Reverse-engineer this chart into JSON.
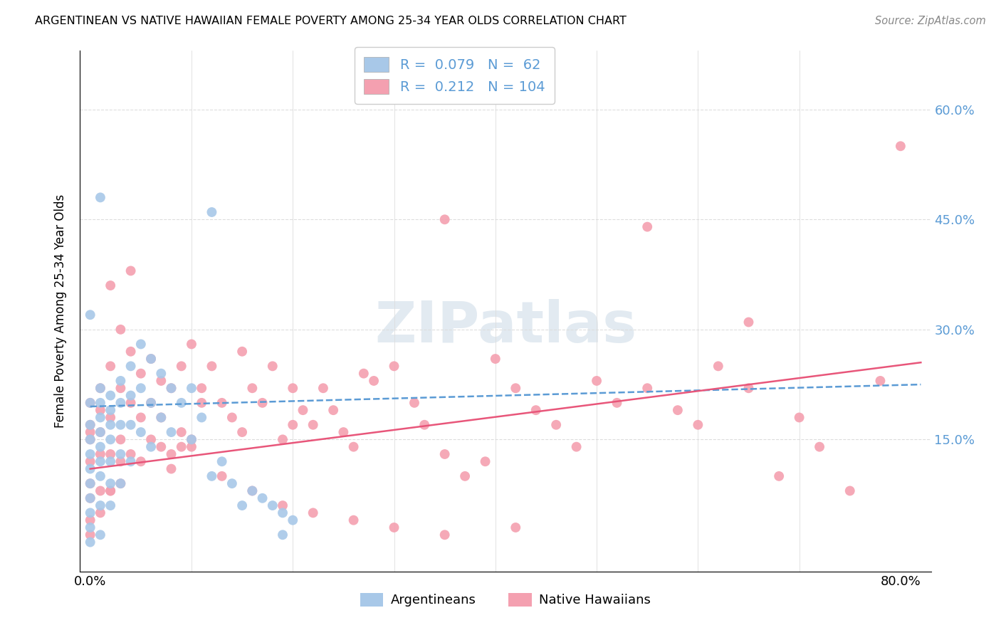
{
  "title": "ARGENTINEAN VS NATIVE HAWAIIAN FEMALE POVERTY AMONG 25-34 YEAR OLDS CORRELATION CHART",
  "source": "Source: ZipAtlas.com",
  "ylabel": "Female Poverty Among 25-34 Year Olds",
  "right_ytick_color": "#5b9bd5",
  "xlim": [
    -0.01,
    0.83
  ],
  "ylim": [
    -0.03,
    0.68
  ],
  "argentinean_color": "#a8c8e8",
  "native_hawaiian_color": "#f4a0b0",
  "argentinean_R": "0.079",
  "argentinean_N": "62",
  "native_hawaiian_R": "0.212",
  "native_hawaiian_N": "104",
  "trend_arg_color": "#5b9bd5",
  "trend_nh_color": "#e8567a",
  "legend_label_1": "Argentineans",
  "legend_label_2": "Native Hawaiians",
  "arg_trend_x0": 0.0,
  "arg_trend_y0": 0.195,
  "arg_trend_x1": 0.82,
  "arg_trend_y1": 0.225,
  "nh_trend_x0": 0.0,
  "nh_trend_y0": 0.11,
  "nh_trend_x1": 0.82,
  "nh_trend_y1": 0.255,
  "argentinean_x": [
    0.0,
    0.0,
    0.0,
    0.0,
    0.0,
    0.0,
    0.0,
    0.0,
    0.0,
    0.0,
    0.01,
    0.01,
    0.01,
    0.01,
    0.01,
    0.01,
    0.01,
    0.01,
    0.01,
    0.02,
    0.02,
    0.02,
    0.02,
    0.02,
    0.02,
    0.02,
    0.03,
    0.03,
    0.03,
    0.03,
    0.03,
    0.04,
    0.04,
    0.04,
    0.04,
    0.05,
    0.05,
    0.05,
    0.06,
    0.06,
    0.06,
    0.07,
    0.07,
    0.08,
    0.08,
    0.09,
    0.1,
    0.1,
    0.11,
    0.12,
    0.13,
    0.14,
    0.15,
    0.16,
    0.17,
    0.18,
    0.19,
    0.2,
    0.01,
    0.12,
    0.19,
    0.0
  ],
  "argentinean_y": [
    0.2,
    0.17,
    0.15,
    0.13,
    0.11,
    0.09,
    0.07,
    0.05,
    0.03,
    0.01,
    0.22,
    0.2,
    0.18,
    0.16,
    0.14,
    0.12,
    0.1,
    0.06,
    0.02,
    0.21,
    0.19,
    0.17,
    0.15,
    0.12,
    0.09,
    0.06,
    0.23,
    0.2,
    0.17,
    0.13,
    0.09,
    0.25,
    0.21,
    0.17,
    0.12,
    0.28,
    0.22,
    0.16,
    0.26,
    0.2,
    0.14,
    0.24,
    0.18,
    0.22,
    0.16,
    0.2,
    0.22,
    0.15,
    0.18,
    0.1,
    0.12,
    0.09,
    0.06,
    0.08,
    0.07,
    0.06,
    0.05,
    0.04,
    0.48,
    0.46,
    0.02,
    0.32
  ],
  "native_hawaiian_x": [
    0.0,
    0.0,
    0.0,
    0.0,
    0.0,
    0.0,
    0.0,
    0.0,
    0.01,
    0.01,
    0.01,
    0.01,
    0.01,
    0.02,
    0.02,
    0.02,
    0.02,
    0.02,
    0.03,
    0.03,
    0.03,
    0.03,
    0.04,
    0.04,
    0.04,
    0.05,
    0.05,
    0.05,
    0.06,
    0.06,
    0.07,
    0.07,
    0.08,
    0.08,
    0.09,
    0.09,
    0.1,
    0.1,
    0.11,
    0.12,
    0.13,
    0.14,
    0.15,
    0.15,
    0.16,
    0.17,
    0.18,
    0.19,
    0.2,
    0.21,
    0.22,
    0.23,
    0.24,
    0.25,
    0.26,
    0.27,
    0.28,
    0.3,
    0.32,
    0.33,
    0.35,
    0.37,
    0.39,
    0.4,
    0.42,
    0.44,
    0.46,
    0.48,
    0.5,
    0.52,
    0.55,
    0.58,
    0.6,
    0.62,
    0.65,
    0.68,
    0.7,
    0.72,
    0.75,
    0.78,
    0.8,
    0.55,
    0.65,
    0.35,
    0.2,
    0.1,
    0.08,
    0.04,
    0.03,
    0.02,
    0.01,
    0.0,
    0.06,
    0.07,
    0.09,
    0.11,
    0.13,
    0.16,
    0.19,
    0.22,
    0.26,
    0.3,
    0.35,
    0.42
  ],
  "native_hawaiian_y": [
    0.2,
    0.17,
    0.15,
    0.12,
    0.09,
    0.07,
    0.04,
    0.02,
    0.22,
    0.19,
    0.16,
    0.13,
    0.08,
    0.36,
    0.25,
    0.18,
    0.13,
    0.08,
    0.3,
    0.22,
    0.15,
    0.09,
    0.27,
    0.2,
    0.13,
    0.24,
    0.18,
    0.12,
    0.26,
    0.15,
    0.23,
    0.14,
    0.22,
    0.13,
    0.25,
    0.16,
    0.28,
    0.15,
    0.22,
    0.25,
    0.2,
    0.18,
    0.27,
    0.16,
    0.22,
    0.2,
    0.25,
    0.15,
    0.22,
    0.19,
    0.17,
    0.22,
    0.19,
    0.16,
    0.14,
    0.24,
    0.23,
    0.25,
    0.2,
    0.17,
    0.13,
    0.1,
    0.12,
    0.26,
    0.22,
    0.19,
    0.17,
    0.14,
    0.23,
    0.2,
    0.22,
    0.19,
    0.17,
    0.25,
    0.22,
    0.1,
    0.18,
    0.14,
    0.08,
    0.23,
    0.55,
    0.44,
    0.31,
    0.45,
    0.17,
    0.14,
    0.11,
    0.38,
    0.12,
    0.08,
    0.05,
    0.16,
    0.2,
    0.18,
    0.14,
    0.2,
    0.1,
    0.08,
    0.06,
    0.05,
    0.04,
    0.03,
    0.02,
    0.03
  ]
}
